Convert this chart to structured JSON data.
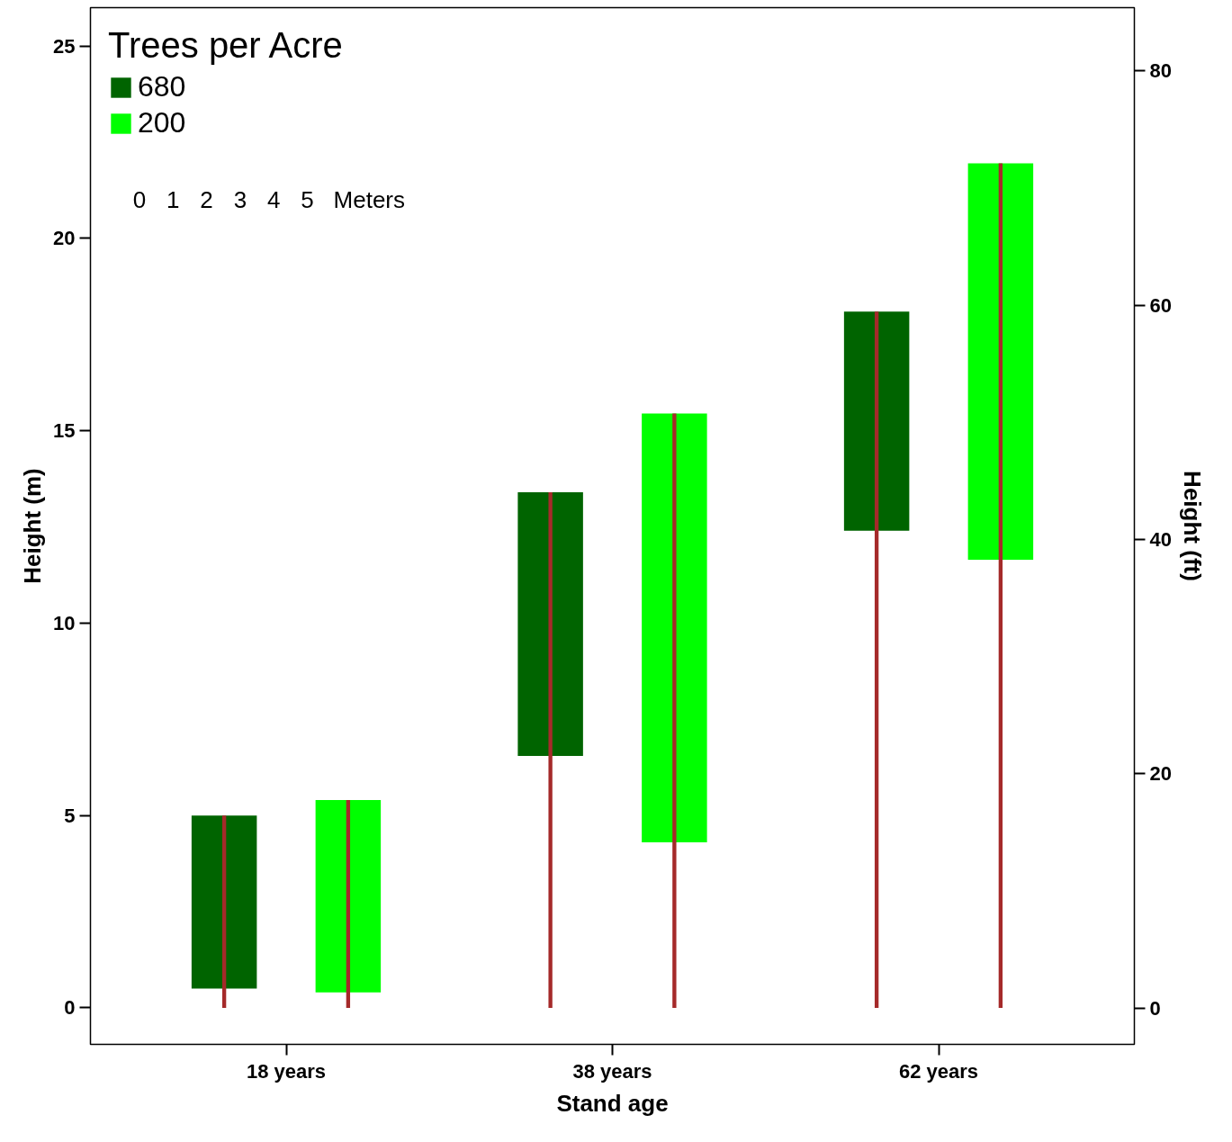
{
  "chart_data": {
    "type": "bar",
    "xlabel": "Stand age",
    "ylabel": "Height (m)",
    "y2label": "Height (ft)",
    "legend_title": "Trees per Acre",
    "legend": "top left",
    "categories": [
      "18 years",
      "38 years",
      "62 years"
    ],
    "ylim": [
      -0.95,
      26.0
    ],
    "yticks": [
      0,
      5,
      10,
      15,
      20,
      25
    ],
    "y2lim": [
      -3.1,
      85.4
    ],
    "y2ticks": [
      0,
      20,
      40,
      60,
      80
    ],
    "series": [
      {
        "name": "680",
        "color": "#006400",
        "base": [
          0.5,
          6.55,
          12.4
        ],
        "values": [
          4.5,
          6.85,
          5.7
        ]
      },
      {
        "name": "200",
        "color": "#00ff00",
        "base": [
          0.4,
          4.3,
          11.65
        ],
        "values": [
          5.0,
          11.15,
          10.3
        ]
      },
      {
        "color": "#a52a2a",
        "values": [
          5.0,
          13.4,
          18.1
        ]
      },
      {
        "color": "#a52a2a",
        "values": [
          5.4,
          15.45,
          21.95
        ]
      }
    ],
    "annotations": [
      "0",
      "1",
      "2",
      "3",
      "4",
      "5",
      "Meters"
    ]
  }
}
